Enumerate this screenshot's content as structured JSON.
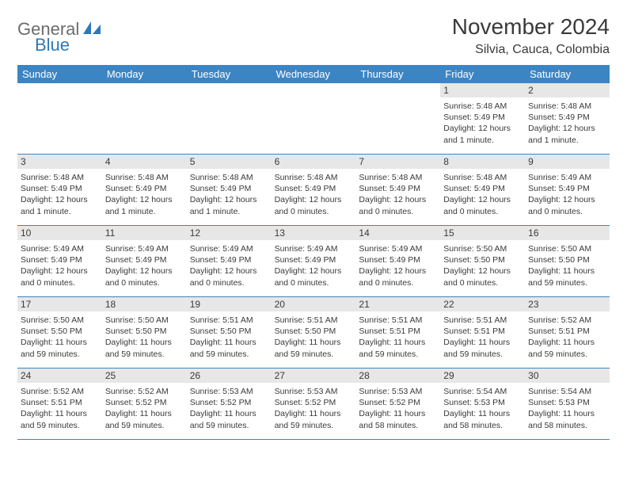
{
  "brand": {
    "part1": "General",
    "part2": "Blue"
  },
  "title": "November 2024",
  "location": "Silvia, Cauca, Colombia",
  "colors": {
    "header_bg": "#3c85c4",
    "header_text": "#ffffff",
    "daynum_bg": "#e7e7e7",
    "text": "#3a3a3a",
    "brand_gray": "#6c6c6c",
    "brand_blue": "#2f78b8",
    "border": "#3c85c4",
    "page_bg": "#ffffff"
  },
  "typography": {
    "month_title_fontsize": 28,
    "location_fontsize": 16,
    "weekday_fontsize": 13,
    "daynum_fontsize": 12,
    "info_fontsize": 10.5,
    "logo_fontsize": 22
  },
  "layout": {
    "columns": 7,
    "rows": 5,
    "leading_blanks": 5
  },
  "weekdays": [
    "Sunday",
    "Monday",
    "Tuesday",
    "Wednesday",
    "Thursday",
    "Friday",
    "Saturday"
  ],
  "days": [
    {
      "n": "1",
      "sunrise": "5:48 AM",
      "sunset": "5:49 PM",
      "daylight": "12 hours and 1 minute."
    },
    {
      "n": "2",
      "sunrise": "5:48 AM",
      "sunset": "5:49 PM",
      "daylight": "12 hours and 1 minute."
    },
    {
      "n": "3",
      "sunrise": "5:48 AM",
      "sunset": "5:49 PM",
      "daylight": "12 hours and 1 minute."
    },
    {
      "n": "4",
      "sunrise": "5:48 AM",
      "sunset": "5:49 PM",
      "daylight": "12 hours and 1 minute."
    },
    {
      "n": "5",
      "sunrise": "5:48 AM",
      "sunset": "5:49 PM",
      "daylight": "12 hours and 1 minute."
    },
    {
      "n": "6",
      "sunrise": "5:48 AM",
      "sunset": "5:49 PM",
      "daylight": "12 hours and 0 minutes."
    },
    {
      "n": "7",
      "sunrise": "5:48 AM",
      "sunset": "5:49 PM",
      "daylight": "12 hours and 0 minutes."
    },
    {
      "n": "8",
      "sunrise": "5:48 AM",
      "sunset": "5:49 PM",
      "daylight": "12 hours and 0 minutes."
    },
    {
      "n": "9",
      "sunrise": "5:49 AM",
      "sunset": "5:49 PM",
      "daylight": "12 hours and 0 minutes."
    },
    {
      "n": "10",
      "sunrise": "5:49 AM",
      "sunset": "5:49 PM",
      "daylight": "12 hours and 0 minutes."
    },
    {
      "n": "11",
      "sunrise": "5:49 AM",
      "sunset": "5:49 PM",
      "daylight": "12 hours and 0 minutes."
    },
    {
      "n": "12",
      "sunrise": "5:49 AM",
      "sunset": "5:49 PM",
      "daylight": "12 hours and 0 minutes."
    },
    {
      "n": "13",
      "sunrise": "5:49 AM",
      "sunset": "5:49 PM",
      "daylight": "12 hours and 0 minutes."
    },
    {
      "n": "14",
      "sunrise": "5:49 AM",
      "sunset": "5:49 PM",
      "daylight": "12 hours and 0 minutes."
    },
    {
      "n": "15",
      "sunrise": "5:50 AM",
      "sunset": "5:50 PM",
      "daylight": "12 hours and 0 minutes."
    },
    {
      "n": "16",
      "sunrise": "5:50 AM",
      "sunset": "5:50 PM",
      "daylight": "11 hours and 59 minutes."
    },
    {
      "n": "17",
      "sunrise": "5:50 AM",
      "sunset": "5:50 PM",
      "daylight": "11 hours and 59 minutes."
    },
    {
      "n": "18",
      "sunrise": "5:50 AM",
      "sunset": "5:50 PM",
      "daylight": "11 hours and 59 minutes."
    },
    {
      "n": "19",
      "sunrise": "5:51 AM",
      "sunset": "5:50 PM",
      "daylight": "11 hours and 59 minutes."
    },
    {
      "n": "20",
      "sunrise": "5:51 AM",
      "sunset": "5:50 PM",
      "daylight": "11 hours and 59 minutes."
    },
    {
      "n": "21",
      "sunrise": "5:51 AM",
      "sunset": "5:51 PM",
      "daylight": "11 hours and 59 minutes."
    },
    {
      "n": "22",
      "sunrise": "5:51 AM",
      "sunset": "5:51 PM",
      "daylight": "11 hours and 59 minutes."
    },
    {
      "n": "23",
      "sunrise": "5:52 AM",
      "sunset": "5:51 PM",
      "daylight": "11 hours and 59 minutes."
    },
    {
      "n": "24",
      "sunrise": "5:52 AM",
      "sunset": "5:51 PM",
      "daylight": "11 hours and 59 minutes."
    },
    {
      "n": "25",
      "sunrise": "5:52 AM",
      "sunset": "5:52 PM",
      "daylight": "11 hours and 59 minutes."
    },
    {
      "n": "26",
      "sunrise": "5:53 AM",
      "sunset": "5:52 PM",
      "daylight": "11 hours and 59 minutes."
    },
    {
      "n": "27",
      "sunrise": "5:53 AM",
      "sunset": "5:52 PM",
      "daylight": "11 hours and 59 minutes."
    },
    {
      "n": "28",
      "sunrise": "5:53 AM",
      "sunset": "5:52 PM",
      "daylight": "11 hours and 58 minutes."
    },
    {
      "n": "29",
      "sunrise": "5:54 AM",
      "sunset": "5:53 PM",
      "daylight": "11 hours and 58 minutes."
    },
    {
      "n": "30",
      "sunrise": "5:54 AM",
      "sunset": "5:53 PM",
      "daylight": "11 hours and 58 minutes."
    }
  ],
  "labels": {
    "sunrise": "Sunrise: ",
    "sunset": "Sunset: ",
    "daylight": "Daylight: "
  }
}
